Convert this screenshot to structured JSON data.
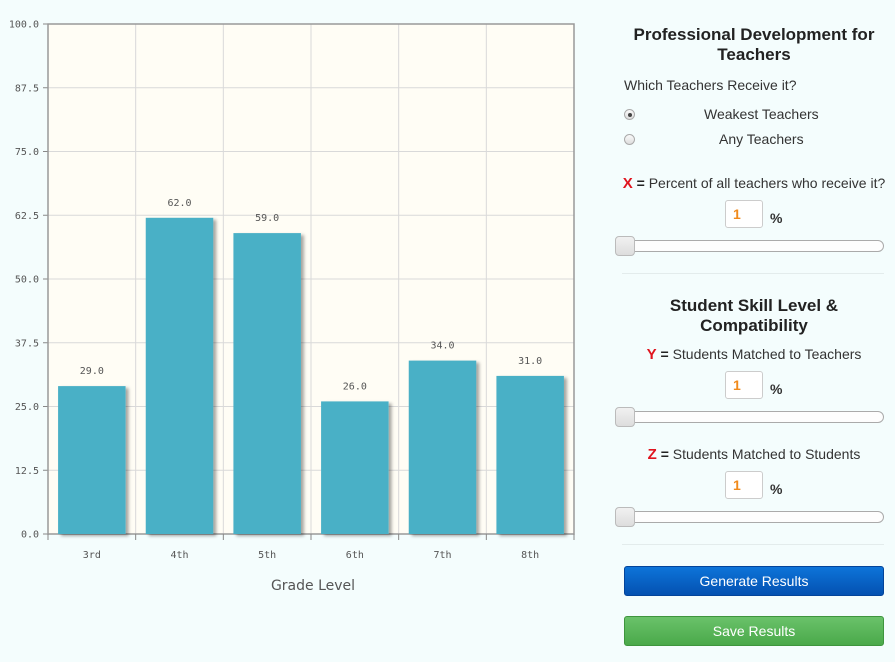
{
  "chart_data": {
    "type": "bar",
    "categories": [
      "3rd",
      "4th",
      "5th",
      "6th",
      "7th",
      "8th"
    ],
    "values": [
      29.0,
      62.0,
      59.0,
      26.0,
      34.0,
      31.0
    ],
    "value_labels": [
      "29.0",
      "62.0",
      "59.0",
      "26.0",
      "34.0",
      "31.0"
    ],
    "title": "",
    "xlabel": "Grade Level",
    "ylabel": "",
    "ylim": [
      0,
      100
    ],
    "y_ticks": [
      "0.0",
      "12.5",
      "25.0",
      "37.5",
      "50.0",
      "62.5",
      "75.0",
      "87.5",
      "100.0"
    ],
    "y_tick_values": [
      0,
      12.5,
      25,
      37.5,
      50,
      62.5,
      75,
      87.5,
      100
    ],
    "grid": true,
    "colors": {
      "bar": "#4ab0c6",
      "plot_bg": "#fffdf5",
      "grid": "#d9d9d9"
    }
  },
  "panel": {
    "pd_title": "Professional Development for Teachers",
    "which_question": "Which Teachers Receive it?",
    "radio_options": [
      {
        "label": "Weakest Teachers",
        "checked": true
      },
      {
        "label": "Any Teachers",
        "checked": false
      }
    ],
    "x_var": {
      "letter": "X",
      "eq": "=",
      "text": "Percent of all teachers who receive it?",
      "value": "1",
      "unit": "%",
      "slider_level": 1
    },
    "skill_title": "Student Skill Level & Compatibility",
    "y_var": {
      "letter": "Y",
      "eq": "=",
      "text": "Students Matched to Teachers",
      "value": "1",
      "unit": "%",
      "slider_level": 1
    },
    "z_var": {
      "letter": "Z",
      "eq": "=",
      "text": "Students Matched to Students",
      "value": "1",
      "unit": "%",
      "slider_level": 1
    },
    "generate_label": "Generate Results",
    "save_label": "Save Results"
  }
}
